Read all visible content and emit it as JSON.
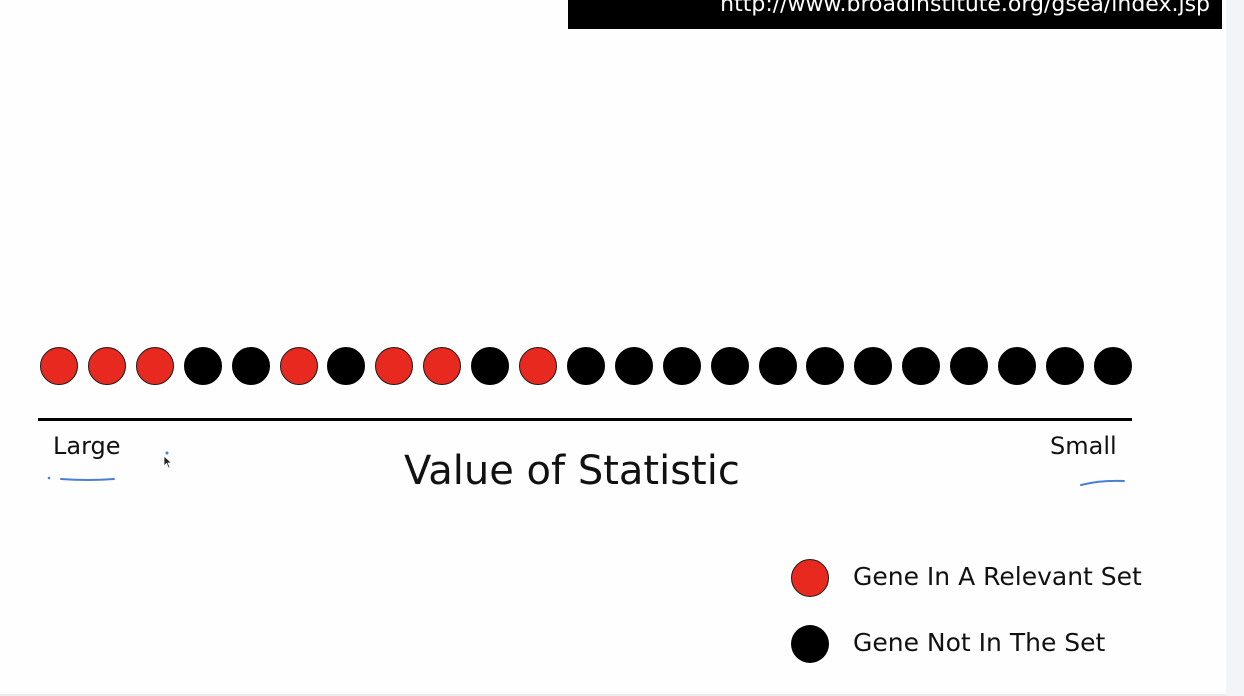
{
  "banner": {
    "url": "http://www.broadinstitute.org/gsea/index.jsp"
  },
  "diagram": {
    "genes": [
      "red",
      "red",
      "red",
      "black",
      "black",
      "red",
      "black",
      "red",
      "red",
      "black",
      "red",
      "black",
      "black",
      "black",
      "black",
      "black",
      "black",
      "black",
      "black",
      "black",
      "black",
      "black",
      "black"
    ],
    "axis": {
      "left_label": "Large",
      "right_label": "Small",
      "title": "Value of Statistic"
    },
    "legend": [
      {
        "color": "red",
        "label": "Gene In A Relevant Set"
      },
      {
        "color": "black",
        "label": "Gene Not In The Set"
      }
    ],
    "colors": {
      "red": "#e8291f",
      "black": "#000000",
      "annotation_ink": "#4a7fd6"
    }
  }
}
